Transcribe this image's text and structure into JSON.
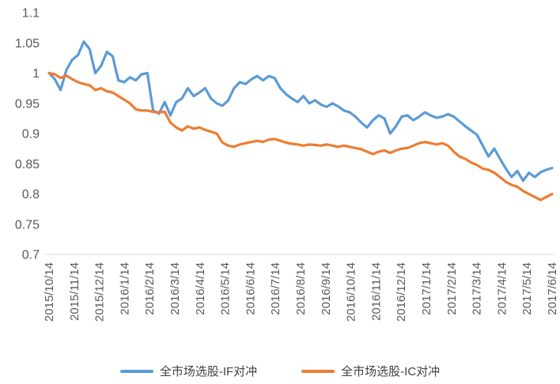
{
  "chart_data": {
    "type": "line",
    "title": "",
    "xlabel": "",
    "ylabel": "",
    "ylim": [
      0.7,
      1.1
    ],
    "y_tick_labels": [
      "1.1",
      "1.05",
      "1",
      "0.95",
      "0.9",
      "0.85",
      "0.8",
      "0.75",
      "0.7"
    ],
    "grid": false,
    "legend_position": "bottom",
    "x_labels": [
      "2015/10/14",
      "2015/11/14",
      "2015/12/14",
      "2016/1/14",
      "2016/2/14",
      "2016/3/14",
      "2016/4/14",
      "2016/5/14",
      "2016/6/14",
      "2016/7/14",
      "2016/8/14",
      "2016/9/14",
      "2016/10/14",
      "2016/11/14",
      "2016/12/14",
      "2017/1/14",
      "2017/2/14",
      "2017/3/14",
      "2017/4/14",
      "2017/5/14",
      "2017/6/14"
    ],
    "series": [
      {
        "name": "全市场选股-IF对冲",
        "color": "#5B9BD5",
        "values": [
          1.0,
          0.99,
          0.972,
          1.005,
          1.022,
          1.03,
          1.052,
          1.04,
          1.0,
          1.012,
          1.035,
          1.028,
          0.988,
          0.985,
          0.993,
          0.988,
          0.998,
          1.0,
          0.938,
          0.933,
          0.952,
          0.93,
          0.952,
          0.958,
          0.975,
          0.962,
          0.968,
          0.975,
          0.958,
          0.95,
          0.946,
          0.955,
          0.975,
          0.985,
          0.982,
          0.99,
          0.995,
          0.988,
          0.995,
          0.992,
          0.975,
          0.965,
          0.958,
          0.952,
          0.962,
          0.95,
          0.955,
          0.948,
          0.944,
          0.95,
          0.945,
          0.938,
          0.935,
          0.928,
          0.918,
          0.91,
          0.922,
          0.93,
          0.925,
          0.9,
          0.912,
          0.928,
          0.93,
          0.922,
          0.928,
          0.935,
          0.93,
          0.926,
          0.928,
          0.932,
          0.928,
          0.92,
          0.912,
          0.905,
          0.898,
          0.88,
          0.862,
          0.875,
          0.858,
          0.842,
          0.828,
          0.838,
          0.822,
          0.835,
          0.828,
          0.836,
          0.84,
          0.843
        ]
      },
      {
        "name": "全市场选股-IC对冲",
        "color": "#ED7D31",
        "values": [
          1.0,
          0.998,
          0.992,
          0.996,
          0.99,
          0.985,
          0.982,
          0.98,
          0.972,
          0.975,
          0.97,
          0.968,
          0.962,
          0.956,
          0.95,
          0.94,
          0.938,
          0.938,
          0.936,
          0.935,
          0.936,
          0.918,
          0.91,
          0.905,
          0.912,
          0.908,
          0.91,
          0.906,
          0.903,
          0.9,
          0.885,
          0.88,
          0.878,
          0.882,
          0.884,
          0.886,
          0.888,
          0.886,
          0.89,
          0.891,
          0.888,
          0.885,
          0.883,
          0.882,
          0.88,
          0.882,
          0.881,
          0.88,
          0.882,
          0.88,
          0.878,
          0.88,
          0.878,
          0.876,
          0.874,
          0.87,
          0.866,
          0.87,
          0.872,
          0.868,
          0.872,
          0.875,
          0.876,
          0.88,
          0.884,
          0.886,
          0.884,
          0.882,
          0.884,
          0.88,
          0.87,
          0.862,
          0.858,
          0.852,
          0.848,
          0.842,
          0.84,
          0.835,
          0.828,
          0.82,
          0.815,
          0.812,
          0.805,
          0.8,
          0.795,
          0.79,
          0.795,
          0.8
        ]
      }
    ]
  }
}
